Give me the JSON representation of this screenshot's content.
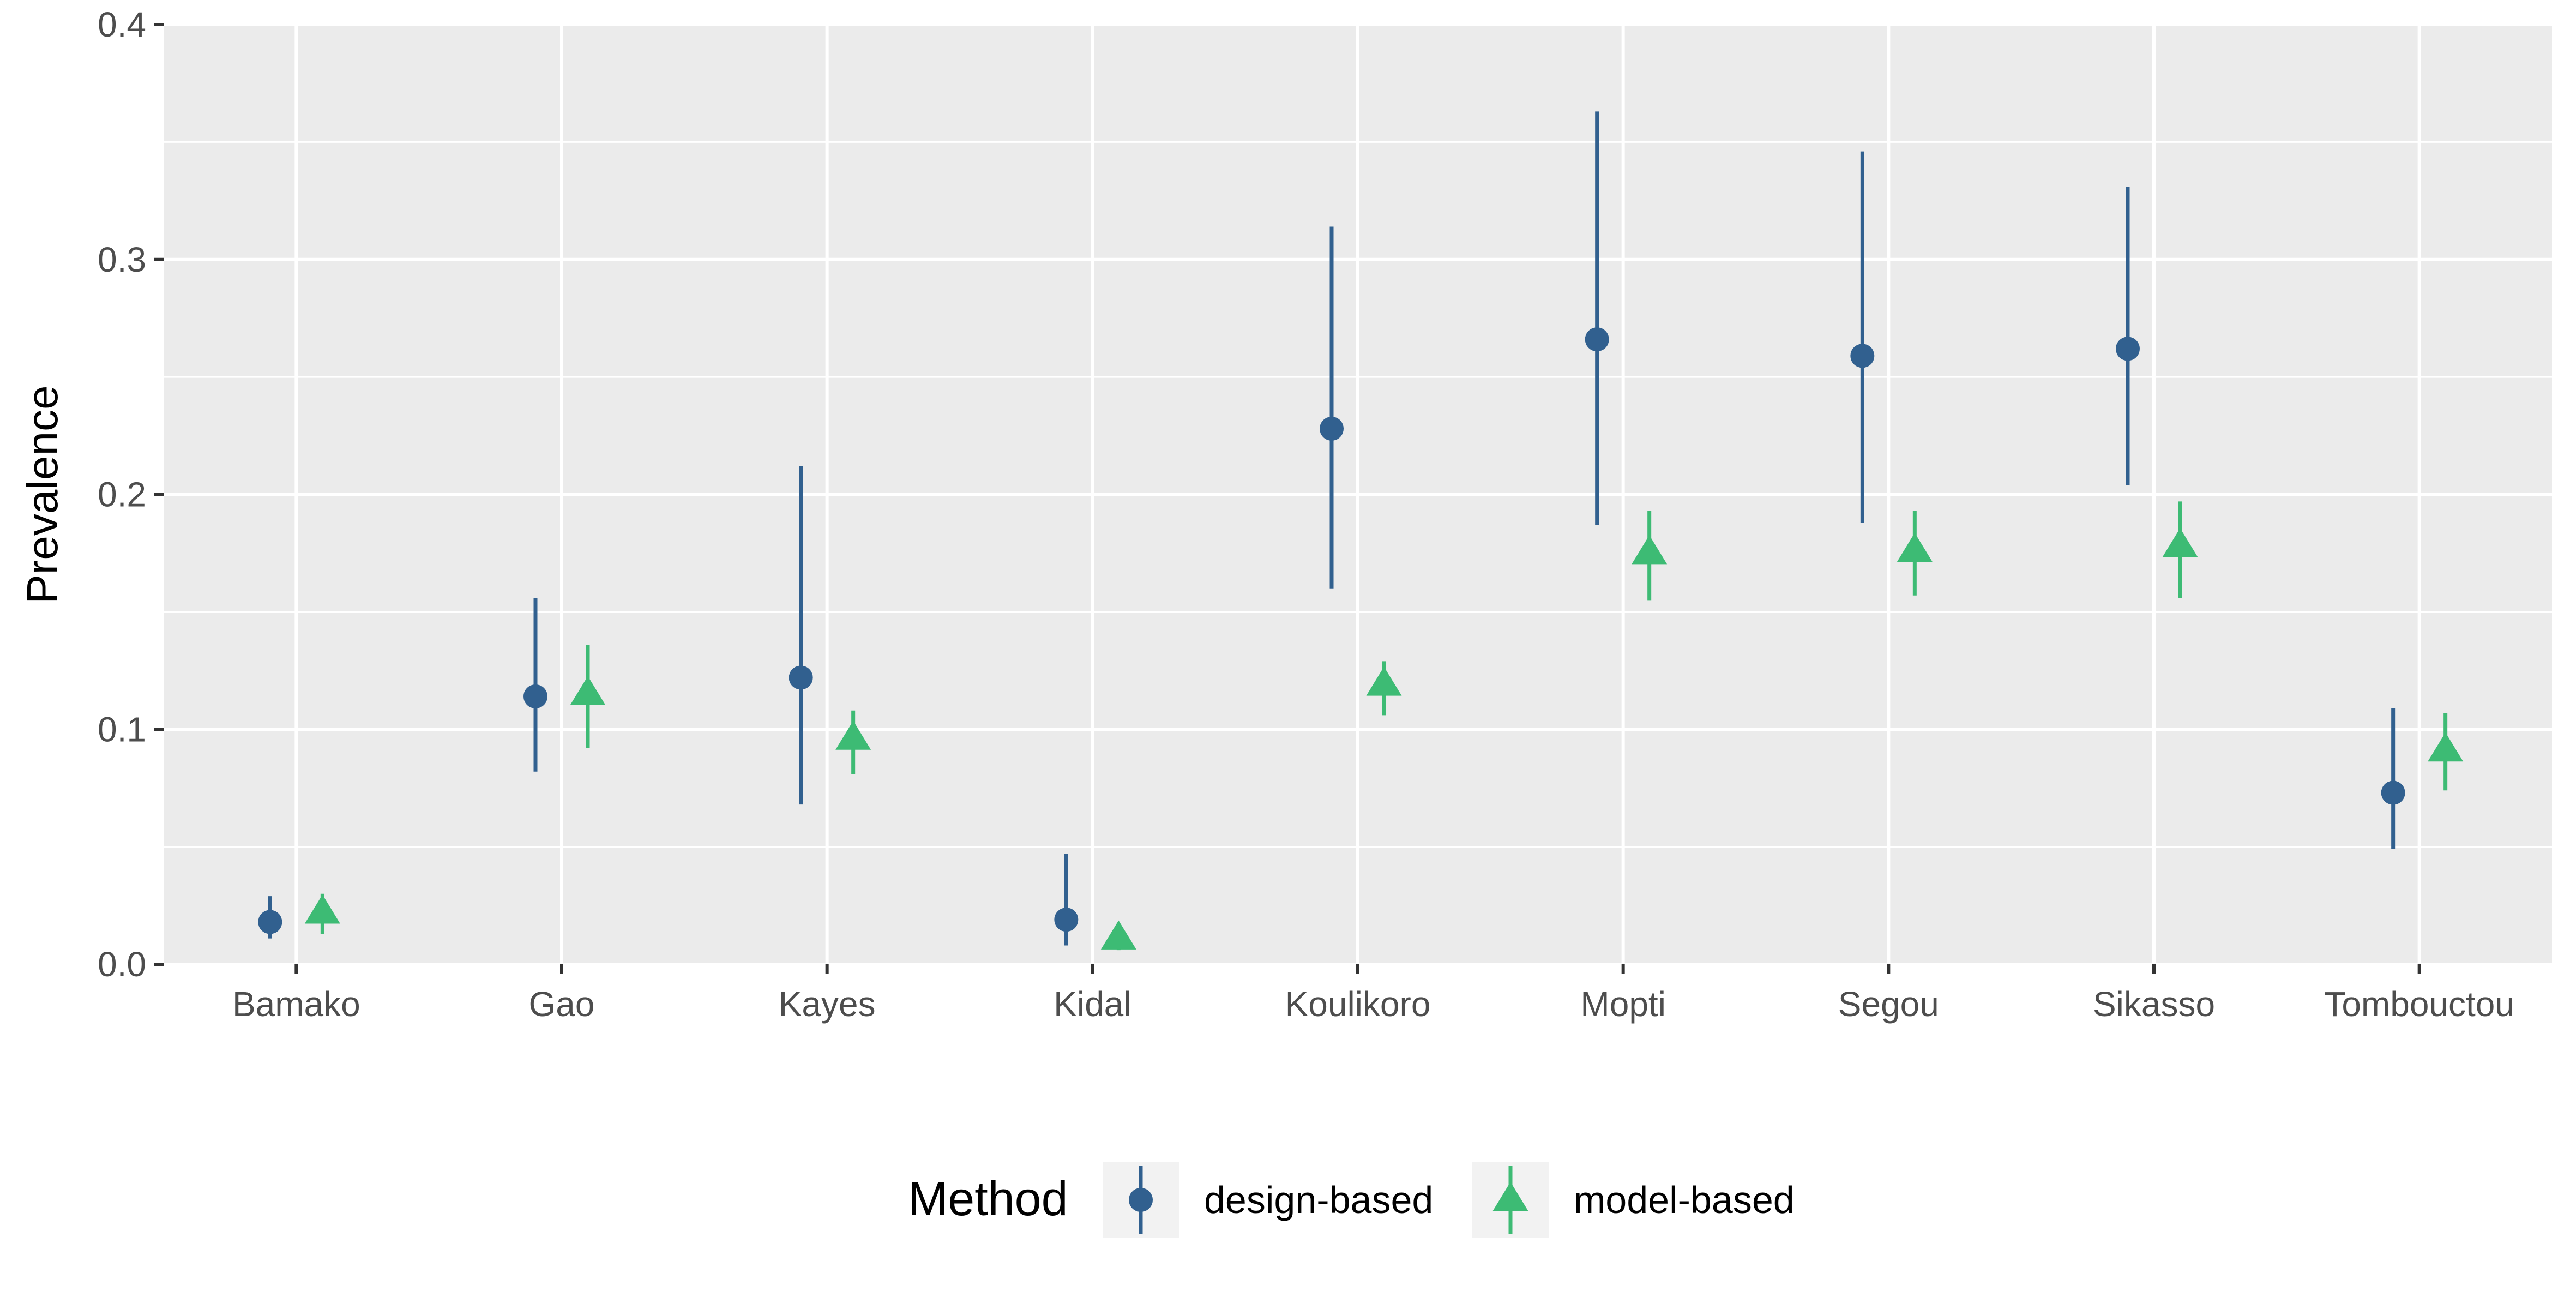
{
  "chart_data": {
    "type": "scatter",
    "title": "",
    "xlabel": "",
    "ylabel": "Prevalence",
    "categories": [
      "Bamako",
      "Gao",
      "Kayes",
      "Kidal",
      "Koulikoro",
      "Mopti",
      "Segou",
      "Sikasso",
      "Tombouctou"
    ],
    "ylim": [
      0,
      0.4
    ],
    "yticks": [
      0.0,
      0.1,
      0.2,
      0.3,
      0.4
    ],
    "ytick_labels": [
      "0.0",
      "0.1",
      "0.2",
      "0.3",
      "0.4"
    ],
    "grid": true,
    "legend": {
      "title": "Method",
      "position": "bottom"
    },
    "series": [
      {
        "name": "design-based",
        "marker": "circle",
        "color": "#31608F",
        "values": [
          0.018,
          0.114,
          0.122,
          0.019,
          0.228,
          0.266,
          0.259,
          0.262,
          0.073
        ],
        "lower": [
          0.011,
          0.082,
          0.068,
          0.008,
          0.16,
          0.187,
          0.188,
          0.204,
          0.049
        ],
        "upper": [
          0.029,
          0.156,
          0.212,
          0.047,
          0.314,
          0.363,
          0.346,
          0.331,
          0.109
        ]
      },
      {
        "name": "model-based",
        "marker": "triangle",
        "color": "#3DBB74",
        "values": [
          0.022,
          0.115,
          0.096,
          0.011,
          0.119,
          0.175,
          0.176,
          0.178,
          0.091
        ],
        "lower": [
          0.013,
          0.092,
          0.081,
          0.006,
          0.106,
          0.155,
          0.157,
          0.156,
          0.074
        ],
        "upper": [
          0.03,
          0.136,
          0.108,
          0.016,
          0.129,
          0.193,
          0.193,
          0.197,
          0.107
        ]
      }
    ]
  },
  "theme": {
    "panel_bg": "#EBEBEB",
    "grid_color": "#FFFFFF",
    "text_color": "#4D4D4D",
    "title_color": "#000000",
    "legend_key_bg": "#F2F2F2"
  }
}
